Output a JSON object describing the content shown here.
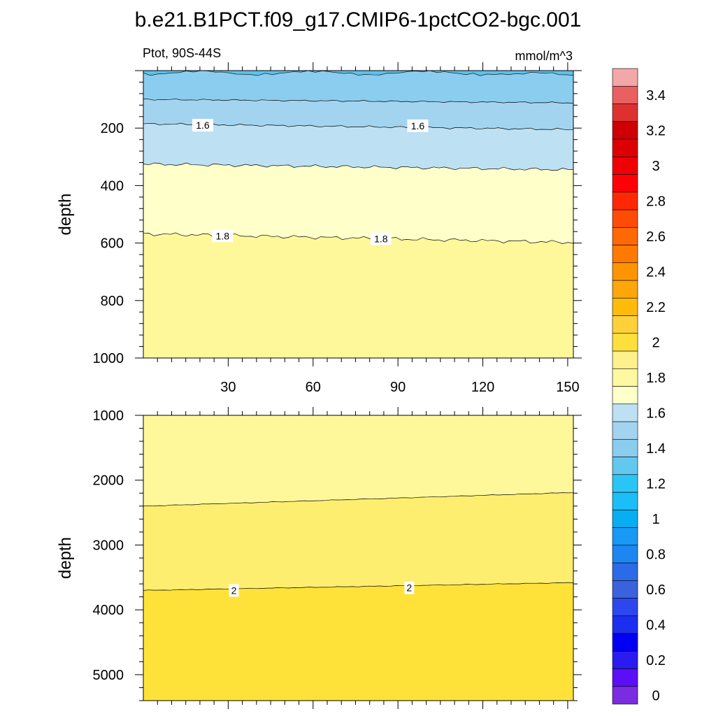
{
  "figure": {
    "title": "b.e21.B1PCT.f09_g17.CMIP6-1pctCO2-bgc.001",
    "left_label": "Ptot, 90S-44S",
    "right_label": "mmol/m^3"
  },
  "chart_data": [
    {
      "type": "heatmap",
      "subtype": "filled-contour",
      "title": "",
      "xlabel": "",
      "ylabel": "depth",
      "xlim": [
        0,
        152
      ],
      "ylim": [
        1000,
        0
      ],
      "x_major_ticks": [
        30,
        60,
        90,
        120,
        150
      ],
      "x_tick_labels": [
        "30",
        "60",
        "90",
        "120",
        "150"
      ],
      "y_major_ticks": [
        200,
        400,
        600,
        800,
        1000
      ],
      "y_tick_labels": [
        "200",
        "400",
        "600",
        "800",
        "1000"
      ],
      "bands": [
        {
          "range": [
            1.3,
            1.4
          ],
          "top": [
            0,
            0,
            0,
            0,
            0
          ],
          "bottom": [
            10,
            18,
            22,
            25,
            15
          ],
          "x": [
            0,
            40,
            80,
            120,
            152
          ]
        },
        {
          "range": [
            1.4,
            1.5
          ],
          "top_ref": "prev",
          "x": [
            0,
            152
          ],
          "bottom": [
            100,
            112
          ]
        },
        {
          "range": [
            1.5,
            1.6
          ],
          "x": [
            0,
            152
          ],
          "bottom": [
            190,
            205
          ]
        },
        {
          "range": [
            1.6,
            1.7
          ],
          "x": [
            0,
            152
          ],
          "bottom": [
            325,
            345
          ]
        },
        {
          "range": [
            1.7,
            1.8
          ],
          "x": [
            0,
            152
          ],
          "bottom": [
            570,
            600
          ]
        },
        {
          "range": [
            1.8,
            1.9
          ],
          "x": [
            0,
            152
          ],
          "bottom": [
            1000,
            1000
          ]
        }
      ],
      "contour_labels": [
        {
          "text": "1.6",
          "x": 21,
          "y": 190
        },
        {
          "text": "1.6",
          "x": 97,
          "y": 192
        },
        {
          "text": "1.8",
          "x": 28,
          "y": 575
        },
        {
          "text": "1.8",
          "x": 84,
          "y": 585
        }
      ]
    },
    {
      "type": "heatmap",
      "subtype": "filled-contour",
      "title": "",
      "xlabel": "",
      "ylabel": "depth",
      "xlim": [
        0,
        152
      ],
      "ylim": [
        5400,
        1000
      ],
      "x_major_ticks": [
        30,
        60,
        90,
        120,
        150
      ],
      "y_major_ticks": [
        1000,
        2000,
        3000,
        4000,
        5000
      ],
      "y_tick_labels": [
        "1000",
        "2000",
        "3000",
        "4000",
        "5000"
      ],
      "bands": [
        {
          "range": [
            1.8,
            1.9
          ],
          "x": [
            0,
            152
          ],
          "bottom": [
            2400,
            2200
          ]
        },
        {
          "range": [
            1.9,
            2.0
          ],
          "x": [
            0,
            152
          ],
          "bottom": [
            3700,
            3580
          ]
        },
        {
          "range": [
            2.0,
            2.1
          ],
          "x": [
            0,
            152
          ],
          "bottom": [
            5400,
            5400
          ]
        }
      ],
      "contour_labels": [
        {
          "text": "2",
          "x": 32,
          "y": 3700
        },
        {
          "text": "2",
          "x": 94,
          "y": 3660
        }
      ]
    }
  ],
  "colorbar": {
    "levels": [
      "0",
      "0.2",
      "0.4",
      "0.6",
      "0.8",
      "1",
      "1.2",
      "1.4",
      "1.6",
      "1.8",
      "2",
      "2.2",
      "2.4",
      "2.6",
      "2.8",
      "3",
      "3.2",
      "3.4"
    ],
    "colors": [
      "#7B2BE0",
      "#5B0FF5",
      "#2A1CF0",
      "#0000F5",
      "#1C2EEE",
      "#2E46EE",
      "#3A62DC",
      "#2B6BE8",
      "#1E86F0",
      "#1799F5",
      "#07AEF2",
      "#1BBEF7",
      "#2BC5F5",
      "#63C8F0",
      "#8BCDEF",
      "#A3D4EF",
      "#BDE1F2",
      "#FFFFCA",
      "#FEF8A0",
      "#FEF08C",
      "#FEE03C",
      "#FED13A",
      "#FEBB0C",
      "#FEA70A",
      "#FE9404",
      "#FE7A05",
      "#FE6805",
      "#FE4B06",
      "#FE2805",
      "#FE0005",
      "#EF0005",
      "#DC0005",
      "#CC0005",
      "#DF3030",
      "#E96060",
      "#F4A7A7"
    ]
  },
  "colors": {
    "c13_14": "#5AC2EF",
    "c14_15": "#8BCDEF",
    "c15_16": "#A3D4EF",
    "c16_17": "#BDE1F2",
    "c17_18": "#FFFFCA",
    "c18_19": "#FEF89A",
    "c19_20": "#FEEE70",
    "c20_21": "#FEE23A"
  }
}
